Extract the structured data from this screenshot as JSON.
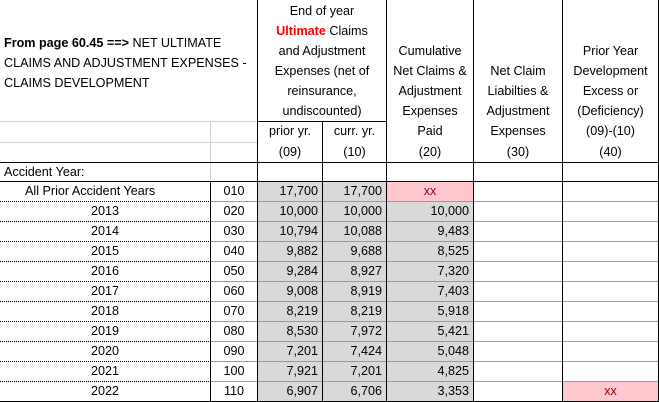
{
  "title": {
    "bold": "From page 60.45 ==>",
    "rest_line1": " NET ULTIMATE",
    "line2": "CLAIMS AND ADJUSTMENT EXPENSES -",
    "line3": "CLAIMS DEVELOPMENT"
  },
  "headers": {
    "col09_10": {
      "l1": "End of year",
      "l2_red": "Ultimate",
      "l2_rest": " Claims",
      "l3": "and Adjustment",
      "l4": "Expenses (net of",
      "l5": "reinsurance,",
      "l6": "undiscounted)"
    },
    "col20": [
      "Cumulative",
      "Net Claims &",
      "Adjustment",
      "Expenses",
      "Paid"
    ],
    "col30": [
      "Net Claim",
      "Liabilties &",
      "Adjustment",
      "Expenses"
    ],
    "col40": [
      "Prior Year",
      "Development",
      "Excess or",
      "(Deficiency)",
      "(09)-(10)"
    ],
    "sub09": "prior yr.",
    "sub10": "curr. yr.",
    "codes": {
      "c09": "(09)",
      "c10": "(10)",
      "c20": "(20)",
      "c30": "(30)",
      "c40": "(40)"
    }
  },
  "accident_year_label": "Accident Year:",
  "rows": [
    {
      "label": "All Prior Accident Years",
      "line": "010",
      "prior": "17,700",
      "curr": "17,700",
      "paid": "xx",
      "liab": "",
      "dev": ""
    },
    {
      "label": "2013",
      "line": "020",
      "prior": "10,000",
      "curr": "10,000",
      "paid": "10,000",
      "liab": "",
      "dev": ""
    },
    {
      "label": "2014",
      "line": "030",
      "prior": "10,794",
      "curr": "10,088",
      "paid": "9,483",
      "liab": "",
      "dev": ""
    },
    {
      "label": "2015",
      "line": "040",
      "prior": "9,882",
      "curr": "9,688",
      "paid": "8,525",
      "liab": "",
      "dev": ""
    },
    {
      "label": "2016",
      "line": "050",
      "prior": "9,284",
      "curr": "8,927",
      "paid": "7,320",
      "liab": "",
      "dev": ""
    },
    {
      "label": "2017",
      "line": "060",
      "prior": "9,008",
      "curr": "8,919",
      "paid": "7,403",
      "liab": "",
      "dev": ""
    },
    {
      "label": "2018",
      "line": "070",
      "prior": "8,219",
      "curr": "8,219",
      "paid": "5,918",
      "liab": "",
      "dev": ""
    },
    {
      "label": "2019",
      "line": "080",
      "prior": "8,530",
      "curr": "7,972",
      "paid": "5,421",
      "liab": "",
      "dev": ""
    },
    {
      "label": "2020",
      "line": "090",
      "prior": "7,201",
      "curr": "7,424",
      "paid": "5,048",
      "liab": "",
      "dev": ""
    },
    {
      "label": "2021",
      "line": "100",
      "prior": "7,921",
      "curr": "7,201",
      "paid": "4,825",
      "liab": "",
      "dev": ""
    },
    {
      "label": "2022",
      "line": "110",
      "prior": "6,907",
      "curr": "6,706",
      "paid": "3,353",
      "liab": "",
      "dev": "xx"
    }
  ],
  "colors": {
    "gray_fill": "#d9d9d9",
    "pink_fill": "#ffc7ce",
    "pink_text": "#9c0006",
    "accent_red": "#ff0000"
  }
}
